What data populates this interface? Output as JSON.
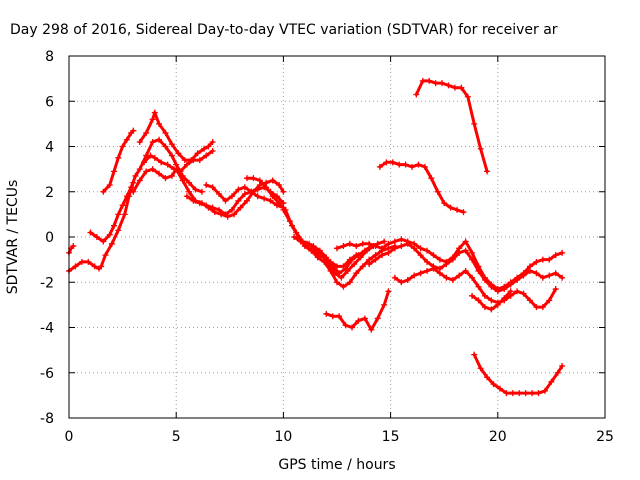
{
  "chart_data": {
    "type": "scatter",
    "title": "Day 298 of 2016, Sidereal Day-to-day VTEC variation (SDTVAR) for receiver ar",
    "xlabel": "GPS time / hours",
    "ylabel": "SDTVAR / TECUs",
    "xlim": [
      0,
      25
    ],
    "ylim": [
      -8,
      8
    ],
    "xticks": [
      "0",
      "5",
      "10",
      "15",
      "20",
      "25"
    ],
    "yticks": [
      "-8",
      "-6",
      "-4",
      "-2",
      "0",
      "2",
      "4",
      "6",
      "8"
    ],
    "grid": true,
    "legend": "none",
    "marker_color": "#ff0000",
    "series": [
      {
        "x": [
          0.0,
          0.1,
          0.2
        ],
        "y": [
          -0.7,
          -0.5,
          -0.4
        ]
      },
      {
        "x": [
          0.0,
          0.3,
          0.6,
          0.9,
          1.2,
          1.4,
          1.5,
          1.7,
          2.0,
          2.3,
          2.6,
          2.8,
          3.0
        ],
        "y": [
          -1.5,
          -1.3,
          -1.1,
          -1.1,
          -1.3,
          -1.4,
          -1.3,
          -0.8,
          -0.3,
          0.3,
          1.0,
          1.8,
          2.4
        ]
      },
      {
        "x": [
          1.0,
          1.3,
          1.6,
          1.9,
          2.1,
          2.3,
          2.5,
          2.7,
          2.9,
          3.1,
          3.3,
          3.6,
          3.9,
          4.2,
          4.5,
          4.8,
          5.0,
          5.3,
          5.6,
          5.9,
          6.2
        ],
        "y": [
          0.2,
          0.0,
          -0.2,
          0.1,
          0.5,
          1.0,
          1.4,
          1.8,
          2.2,
          2.7,
          3.0,
          3.6,
          4.2,
          4.3,
          4.0,
          3.6,
          3.2,
          2.7,
          2.4,
          2.1,
          2.0
        ]
      },
      {
        "x": [
          1.6,
          1.9,
          2.1,
          2.3,
          2.5,
          2.7,
          2.9,
          3.0
        ],
        "y": [
          2.0,
          2.3,
          2.9,
          3.5,
          4.0,
          4.3,
          4.6,
          4.7
        ]
      },
      {
        "x": [
          3.3,
          3.6,
          3.9,
          4.0,
          4.2,
          4.5,
          4.8,
          5.1,
          5.4,
          5.7,
          6.0,
          6.3,
          6.5,
          6.7
        ],
        "y": [
          4.2,
          4.6,
          5.2,
          5.5,
          5.0,
          4.6,
          4.1,
          3.7,
          3.4,
          3.4,
          3.7,
          3.9,
          4.0,
          4.2
        ]
      },
      {
        "x": [
          3.5,
          3.8,
          4.0,
          4.3,
          4.6,
          4.9,
          5.2,
          5.5,
          5.8,
          6.1,
          6.4,
          6.7
        ],
        "y": [
          3.3,
          3.6,
          3.5,
          3.3,
          3.2,
          3.0,
          2.9,
          3.2,
          3.4,
          3.4,
          3.6,
          3.8
        ]
      },
      {
        "x": [
          3.0,
          3.3,
          3.6,
          3.9,
          4.2,
          4.5,
          4.8,
          5.0
        ],
        "y": [
          2.0,
          2.5,
          2.9,
          3.0,
          2.8,
          2.6,
          2.7,
          3.0
        ]
      },
      {
        "x": [
          5.0,
          5.3,
          5.6,
          5.9,
          6.2,
          6.5,
          6.8,
          7.1,
          7.4,
          7.7,
          8.0,
          8.3,
          8.6,
          8.9,
          9.2,
          9.5,
          9.8,
          10.0
        ],
        "y": [
          3.0,
          2.5,
          2.0,
          1.6,
          1.5,
          1.3,
          1.1,
          1.0,
          0.9,
          1.0,
          1.3,
          1.6,
          2.0,
          2.3,
          2.4,
          2.5,
          2.3,
          2.0
        ]
      },
      {
        "x": [
          5.5,
          5.8,
          6.1,
          6.4,
          6.7,
          7.0,
          7.3,
          7.6,
          7.9,
          8.2,
          8.5,
          8.8,
          9.1,
          9.4,
          9.7,
          10.0
        ],
        "y": [
          1.8,
          1.6,
          1.5,
          1.4,
          1.3,
          1.2,
          1.0,
          1.2,
          1.6,
          1.9,
          2.0,
          2.1,
          2.2,
          2.0,
          1.8,
          1.5
        ]
      },
      {
        "x": [
          6.4,
          6.7,
          7.0,
          7.3,
          7.6,
          7.9,
          8.2,
          8.5,
          8.8,
          9.1,
          9.4,
          9.7,
          10.0
        ],
        "y": [
          2.3,
          2.2,
          1.9,
          1.6,
          1.8,
          2.1,
          2.2,
          2.0,
          1.8,
          1.7,
          1.6,
          1.4,
          1.3
        ]
      },
      {
        "x": [
          8.3,
          8.6,
          8.9,
          9.2,
          9.5,
          9.8,
          10.1,
          10.4,
          10.7,
          11.0,
          11.3,
          11.6,
          11.9,
          12.2,
          12.5,
          12.8,
          13.1,
          13.4,
          13.7,
          14.0
        ],
        "y": [
          2.6,
          2.6,
          2.5,
          2.2,
          1.8,
          1.5,
          1.2,
          0.5,
          0.0,
          -0.4,
          -0.6,
          -0.8,
          -0.9,
          -1.1,
          -1.3,
          -1.3,
          -1.0,
          -0.8,
          -0.7,
          -0.5
        ]
      },
      {
        "x": [
          10.0,
          10.3,
          10.6,
          10.9,
          11.2,
          11.5,
          11.8,
          12.1,
          12.4,
          12.7,
          13.0,
          13.3,
          13.6,
          13.9,
          14.2
        ],
        "y": [
          1.2,
          0.7,
          0.2,
          -0.2,
          -0.3,
          -0.6,
          -0.8,
          -1.2,
          -1.6,
          -1.8,
          -1.5,
          -1.2,
          -0.9,
          -0.6,
          -0.4
        ]
      },
      {
        "x": [
          10.5,
          10.8,
          11.1,
          11.4,
          11.7,
          12.0,
          12.3,
          12.6,
          12.9,
          13.2,
          13.5,
          13.8,
          14.1,
          14.4,
          14.7
        ],
        "y": [
          0.0,
          -0.2,
          -0.3,
          -0.4,
          -0.6,
          -0.9,
          -1.3,
          -1.6,
          -1.4,
          -1.0,
          -0.8,
          -0.6,
          -0.4,
          -0.3,
          -0.2
        ]
      },
      {
        "x": [
          11.0,
          11.3,
          11.6,
          11.9,
          12.2,
          12.5,
          12.8,
          13.1,
          13.4,
          13.7,
          14.0,
          14.3,
          14.6,
          14.9,
          15.2
        ],
        "y": [
          -0.3,
          -0.6,
          -0.9,
          -1.1,
          -1.5,
          -2.0,
          -2.2,
          -2.0,
          -1.6,
          -1.3,
          -1.0,
          -0.8,
          -0.6,
          -0.5,
          -0.4
        ]
      },
      {
        "x": [
          12.5,
          12.8,
          13.1,
          13.4,
          13.7,
          14.0,
          14.3,
          14.6,
          14.9,
          15.2,
          15.5,
          15.8,
          16.1,
          16.4,
          16.7,
          17.0,
          17.3,
          17.6,
          17.9,
          18.2,
          18.5,
          18.8,
          19.1,
          19.4,
          19.7,
          20.0,
          20.3,
          20.6,
          20.9,
          21.2,
          21.5,
          21.8,
          22.1,
          22.4,
          22.7,
          23.0
        ],
        "y": [
          -0.5,
          -0.4,
          -0.3,
          -0.4,
          -0.3,
          -0.3,
          -0.4,
          -0.5,
          -0.3,
          -0.2,
          -0.1,
          -0.2,
          -0.3,
          -0.5,
          -0.6,
          -0.8,
          -1.0,
          -1.1,
          -0.9,
          -0.5,
          -0.2,
          -0.7,
          -1.3,
          -1.8,
          -2.1,
          -2.3,
          -2.2,
          -2.0,
          -1.8,
          -1.6,
          -1.3,
          -1.1,
          -1.0,
          -1.0,
          -0.8,
          -0.7
        ]
      },
      {
        "x": [
          14.0,
          14.3,
          14.6,
          14.9,
          15.2,
          15.5,
          15.8,
          16.1,
          16.4,
          16.7,
          17.0,
          17.3,
          17.6,
          17.9,
          18.2,
          18.5,
          18.8,
          19.1,
          19.4,
          19.7,
          20.0,
          20.3,
          20.6,
          20.9,
          21.2,
          21.5,
          21.8,
          22.1,
          22.4,
          22.7,
          23.0
        ],
        "y": [
          -1.2,
          -1.0,
          -0.8,
          -0.7,
          -0.5,
          -0.4,
          -0.3,
          -0.5,
          -0.8,
          -1.1,
          -1.3,
          -1.4,
          -1.2,
          -1.0,
          -0.7,
          -0.6,
          -1.0,
          -1.5,
          -1.9,
          -2.2,
          -2.4,
          -2.3,
          -2.1,
          -1.9,
          -1.7,
          -1.5,
          -1.6,
          -1.8,
          -1.7,
          -1.6,
          -1.8
        ]
      },
      {
        "x": [
          15.2,
          15.5,
          15.8,
          16.1,
          16.4,
          16.7,
          17.0,
          17.3,
          17.6,
          17.9,
          18.2,
          18.5,
          18.8,
          19.1,
          19.4,
          19.7,
          20.0,
          20.3,
          20.6,
          20.9,
          21.2,
          21.5,
          21.8,
          22.1,
          22.4,
          22.7
        ],
        "y": [
          -1.8,
          -2.0,
          -1.9,
          -1.7,
          -1.6,
          -1.5,
          -1.4,
          -1.6,
          -1.8,
          -1.9,
          -1.7,
          -1.5,
          -1.8,
          -2.2,
          -2.6,
          -2.8,
          -2.9,
          -2.8,
          -2.6,
          -2.4,
          -2.5,
          -2.8,
          -3.1,
          -3.1,
          -2.8,
          -2.3
        ]
      },
      {
        "x": [
          18.8,
          19.1,
          19.4,
          19.7,
          20.0,
          20.3,
          20.6
        ],
        "y": [
          -2.6,
          -2.8,
          -3.1,
          -3.2,
          -3.0,
          -2.7,
          -2.4
        ]
      },
      {
        "x": [
          12.0,
          12.3,
          12.6,
          12.9,
          13.2,
          13.5,
          13.8,
          14.1,
          14.4,
          14.7,
          14.9
        ],
        "y": [
          -3.4,
          -3.5,
          -3.5,
          -3.9,
          -4.0,
          -3.7,
          -3.6,
          -4.1,
          -3.6,
          -3.0,
          -2.4
        ]
      },
      {
        "x": [
          14.5,
          14.8,
          15.1,
          15.4,
          15.7,
          16.0,
          16.3,
          16.6,
          16.9,
          17.2,
          17.5,
          17.8,
          18.1,
          18.4
        ],
        "y": [
          3.1,
          3.3,
          3.3,
          3.2,
          3.2,
          3.1,
          3.2,
          3.1,
          2.6,
          2.0,
          1.5,
          1.3,
          1.2,
          1.1
        ]
      },
      {
        "x": [
          16.2,
          16.5,
          16.8,
          17.1,
          17.4,
          17.7,
          18.0,
          18.3,
          18.6,
          18.9,
          19.2,
          19.5
        ],
        "y": [
          6.3,
          6.9,
          6.9,
          6.8,
          6.8,
          6.7,
          6.6,
          6.6,
          6.2,
          5.0,
          3.9,
          2.9
        ]
      },
      {
        "x": [
          18.9,
          19.2,
          19.5,
          19.8,
          20.1,
          20.4,
          20.7,
          21.0,
          21.3,
          21.6,
          21.9,
          22.2,
          22.5,
          22.8,
          23.0
        ],
        "y": [
          -5.2,
          -5.8,
          -6.2,
          -6.5,
          -6.7,
          -6.9,
          -6.9,
          -6.9,
          -6.9,
          -6.9,
          -6.9,
          -6.8,
          -6.4,
          -6.0,
          -5.7
        ]
      }
    ]
  }
}
